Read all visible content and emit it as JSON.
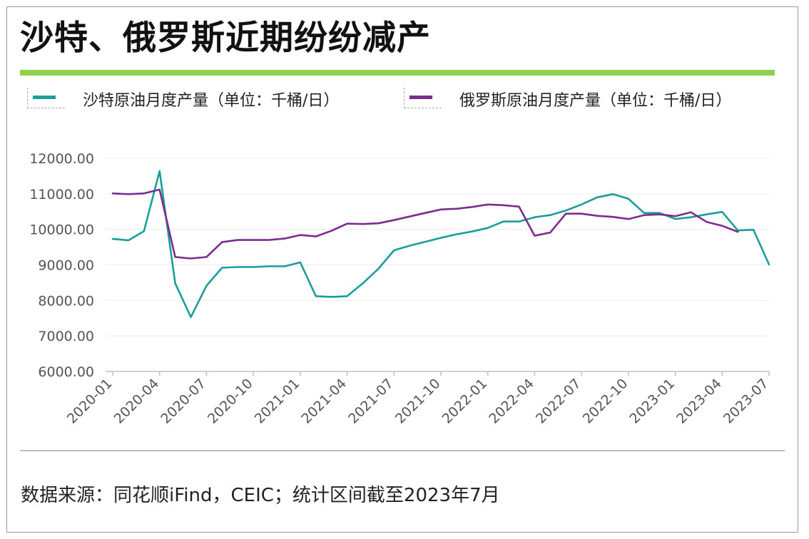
{
  "title": "沙特、俄罗斯近期纷纷减产",
  "legend": [
    {
      "label": "沙特原油月度产量（单位：千桶/日）",
      "color": "#1a9e9a"
    },
    {
      "label": "俄罗斯原油月度产量（单位：千桶/日）",
      "color": "#7b2d8e"
    }
  ],
  "source": "数据来源：同花顺iFind，CEIC；统计区间截至2023年7月",
  "chart_data": {
    "type": "line",
    "title": "沙特、俄罗斯近期纷纷减产",
    "xlabel": "",
    "ylabel": "",
    "ylim": [
      6000,
      12000
    ],
    "y_ticks": [
      "6000.00",
      "7000.00",
      "8000.00",
      "9000.00",
      "10000.00",
      "11000.00",
      "12000.00"
    ],
    "x_tick_labels": [
      "2020-01",
      "2020-04",
      "2020-07",
      "2020-10",
      "2021-01",
      "2021-04",
      "2021-07",
      "2021-10",
      "2022-01",
      "2022-04",
      "2022-07",
      "2022-10",
      "2023-01",
      "2023-04",
      "2023-07"
    ],
    "x": [
      "2020-01",
      "2020-02",
      "2020-03",
      "2020-04",
      "2020-05",
      "2020-06",
      "2020-07",
      "2020-08",
      "2020-09",
      "2020-10",
      "2020-11",
      "2020-12",
      "2021-01",
      "2021-02",
      "2021-03",
      "2021-04",
      "2021-05",
      "2021-06",
      "2021-07",
      "2021-08",
      "2021-09",
      "2021-10",
      "2021-11",
      "2021-12",
      "2022-01",
      "2022-02",
      "2022-03",
      "2022-04",
      "2022-05",
      "2022-06",
      "2022-07",
      "2022-08",
      "2022-09",
      "2022-10",
      "2022-11",
      "2022-12",
      "2023-01",
      "2023-02",
      "2023-03",
      "2023-04",
      "2023-05",
      "2023-06",
      "2023-07"
    ],
    "grid": true,
    "legend_position": "top",
    "series": [
      {
        "name": "沙特原油月度产量（单位：千桶/日）",
        "color": "#1a9e9a",
        "values": [
          9730,
          9690,
          9950,
          11640,
          8480,
          7530,
          8410,
          8920,
          8940,
          8940,
          8960,
          8960,
          9070,
          8120,
          8100,
          8120,
          8480,
          8890,
          9410,
          9540,
          9650,
          9760,
          9860,
          9940,
          10040,
          10220,
          10220,
          10340,
          10400,
          10530,
          10700,
          10900,
          10990,
          10860,
          10460,
          10460,
          10290,
          10340,
          10420,
          10490,
          9970,
          9990,
          9010
        ]
      },
      {
        "name": "俄罗斯原油月度产量（单位：千桶/日）",
        "color": "#7b2d8e",
        "values": [
          11010,
          10990,
          11010,
          11120,
          9220,
          9180,
          9220,
          9640,
          9700,
          9700,
          9700,
          9740,
          9840,
          9800,
          9960,
          10160,
          10150,
          10170,
          10260,
          10360,
          10460,
          10560,
          10580,
          10630,
          10700,
          10680,
          10640,
          9820,
          9910,
          10440,
          10440,
          10380,
          10350,
          10290,
          10400,
          10420,
          10370,
          10480,
          10210,
          10100,
          9930,
          null,
          null
        ]
      }
    ]
  }
}
